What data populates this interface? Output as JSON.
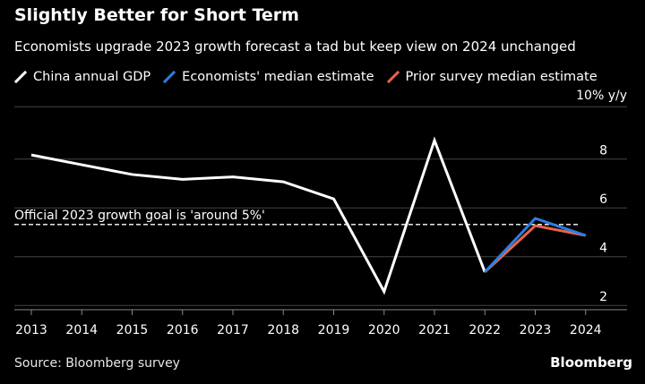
{
  "title": "Slightly Better for Short Term",
  "subtitle": "Economists upgrade 2023 growth forecast a tad but keep view on 2024 unchanged",
  "source": "Source: Bloomberg survey",
  "brand": "Bloomberg",
  "colors": {
    "background": "#000000",
    "gdp": "#ffffff",
    "economists": "#2f7de1",
    "prior": "#e8654a",
    "grid": "#444444"
  },
  "chart_data": {
    "type": "line",
    "y_unit_label": "10% y/y",
    "ylim": [
      1.5,
      10
    ],
    "yticks": [
      2,
      4,
      6,
      8
    ],
    "x": [
      "2013",
      "2014",
      "2015",
      "2016",
      "2017",
      "2018",
      "2019",
      "2020",
      "2021",
      "2022",
      "2023",
      "2024"
    ],
    "grid": true,
    "reference_line": {
      "y": 4.95,
      "label": "Official 2023 growth goal is 'around 5%'"
    },
    "series": [
      {
        "name": "China annual GDP",
        "color": "#ffffff",
        "values": [
          7.8,
          7.4,
          7.0,
          6.8,
          6.9,
          6.7,
          6.0,
          2.2,
          8.4,
          3.0,
          null,
          null
        ]
      },
      {
        "name": "Prior survey median estimate",
        "color": "#e8654a",
        "values": [
          null,
          null,
          null,
          null,
          null,
          null,
          null,
          null,
          null,
          3.0,
          4.9,
          4.5
        ]
      },
      {
        "name": "Economists' median estimate",
        "color": "#2f7de1",
        "values": [
          null,
          null,
          null,
          null,
          null,
          null,
          null,
          null,
          null,
          3.0,
          5.2,
          4.5
        ]
      }
    ]
  }
}
